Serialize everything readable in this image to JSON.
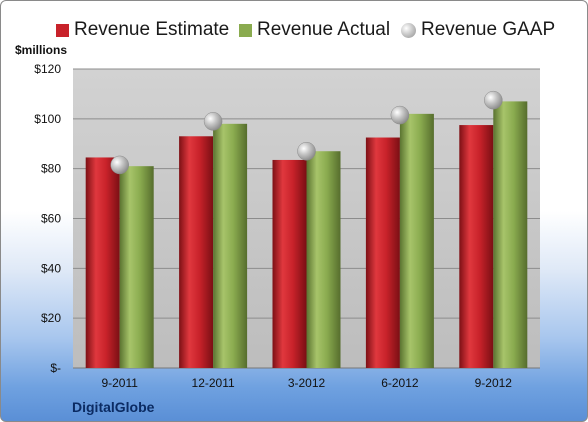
{
  "chart_data": {
    "type": "bar",
    "ylabel": "$millions",
    "categories": [
      "9-2011",
      "12-2011",
      "3-2012",
      "6-2012",
      "9-2012"
    ],
    "series": [
      {
        "name": "Revenue Estimate",
        "kind": "bar",
        "color": "#c8222a",
        "values": [
          84.5,
          93,
          83.5,
          92.5,
          97.5
        ]
      },
      {
        "name": "Revenue Actual",
        "kind": "bar",
        "color": "#8aab4f",
        "values": [
          81,
          98,
          87,
          102,
          107
        ]
      },
      {
        "name": "Revenue GAAP",
        "kind": "marker",
        "color": "#b8b8b8",
        "values": [
          81.5,
          99,
          87,
          101.5,
          107.5
        ]
      }
    ],
    "ylim": [
      0,
      120
    ],
    "yticks": [
      "$-",
      "$20",
      "$40",
      "$60",
      "$80",
      "$100",
      "$120"
    ],
    "grid": true,
    "legend": "top"
  },
  "company": "DigitalGlobe"
}
